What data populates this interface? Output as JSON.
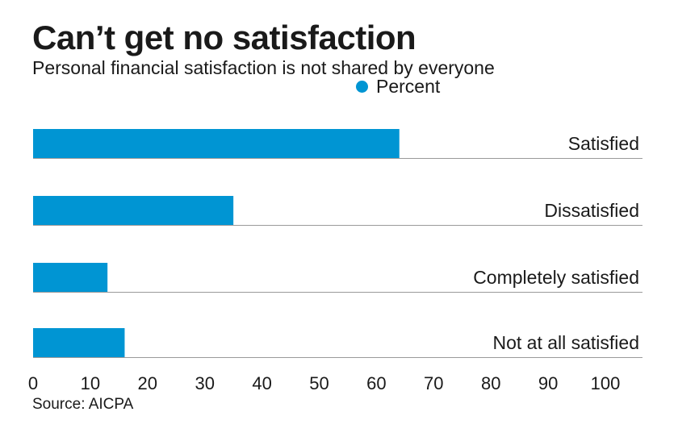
{
  "header": {
    "title": "Can’t get no satisfaction",
    "subtitle": "Personal financial satisfaction is not shared by everyone"
  },
  "legend": {
    "label": "Percent",
    "color": "#0095d3"
  },
  "footer": {
    "source": "Source: AICPA"
  },
  "chart_data": {
    "type": "bar",
    "orientation": "horizontal",
    "title": "Can’t get no satisfaction",
    "subtitle": "Personal financial satisfaction is not shared by everyone",
    "categories": [
      "Satisfied",
      "Dissatisfied",
      "Completely satisfied",
      "Not at all satisfied"
    ],
    "series": [
      {
        "name": "Percent",
        "values": [
          64,
          35,
          13,
          16
        ]
      }
    ],
    "xlim": [
      0,
      100
    ],
    "xticks": [
      "0",
      "10",
      "20",
      "30",
      "40",
      "50",
      "60",
      "70",
      "80",
      "90",
      "100"
    ],
    "xlabel": "",
    "ylabel": "",
    "grid": false,
    "legend_position": "top"
  }
}
